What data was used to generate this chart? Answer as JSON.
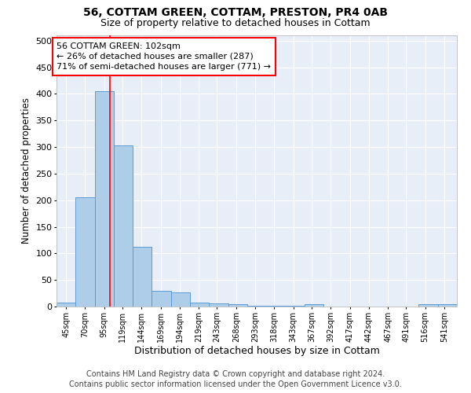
{
  "title": "56, COTTAM GREEN, COTTAM, PRESTON, PR4 0AB",
  "subtitle": "Size of property relative to detached houses in Cottam",
  "xlabel": "Distribution of detached houses by size in Cottam",
  "ylabel": "Number of detached properties",
  "bar_color": "#aecde8",
  "bar_edge_color": "#5b9bd5",
  "bg_color": "#e8eef8",
  "grid_color": "white",
  "bin_labels": [
    "45sqm",
    "70sqm",
    "95sqm",
    "119sqm",
    "144sqm",
    "169sqm",
    "194sqm",
    "219sqm",
    "243sqm",
    "268sqm",
    "293sqm",
    "318sqm",
    "343sqm",
    "367sqm",
    "392sqm",
    "417sqm",
    "442sqm",
    "467sqm",
    "491sqm",
    "516sqm",
    "541sqm"
  ],
  "bin_values": [
    8,
    205,
    405,
    303,
    113,
    30,
    27,
    8,
    6,
    4,
    1,
    1,
    1,
    4,
    0,
    0,
    0,
    0,
    0,
    4,
    4
  ],
  "bin_edges": [
    32.5,
    57.5,
    82.5,
    107.5,
    132.5,
    157.5,
    182.5,
    207.5,
    232.5,
    257.5,
    282.5,
    307.5,
    332.5,
    357.5,
    382.5,
    407.5,
    432.5,
    457.5,
    482.5,
    507.5,
    532.5,
    557.5
  ],
  "tick_positions": [
    45,
    70,
    95,
    119,
    144,
    169,
    194,
    219,
    243,
    268,
    293,
    318,
    343,
    367,
    392,
    417,
    442,
    467,
    491,
    516,
    541
  ],
  "red_line_x": 102,
  "ylim": [
    0,
    510
  ],
  "annotation_line1": "56 COTTAM GREEN: 102sqm",
  "annotation_line2": "← 26% of detached houses are smaller (287)",
  "annotation_line3": "71% of semi-detached houses are larger (771) →",
  "footer_line1": "Contains HM Land Registry data © Crown copyright and database right 2024.",
  "footer_line2": "Contains public sector information licensed under the Open Government Licence v3.0.",
  "title_fontsize": 10,
  "subtitle_fontsize": 9,
  "xlabel_fontsize": 9,
  "ylabel_fontsize": 8.5,
  "tick_fontsize": 7,
  "annotation_fontsize": 8,
  "footer_fontsize": 7
}
